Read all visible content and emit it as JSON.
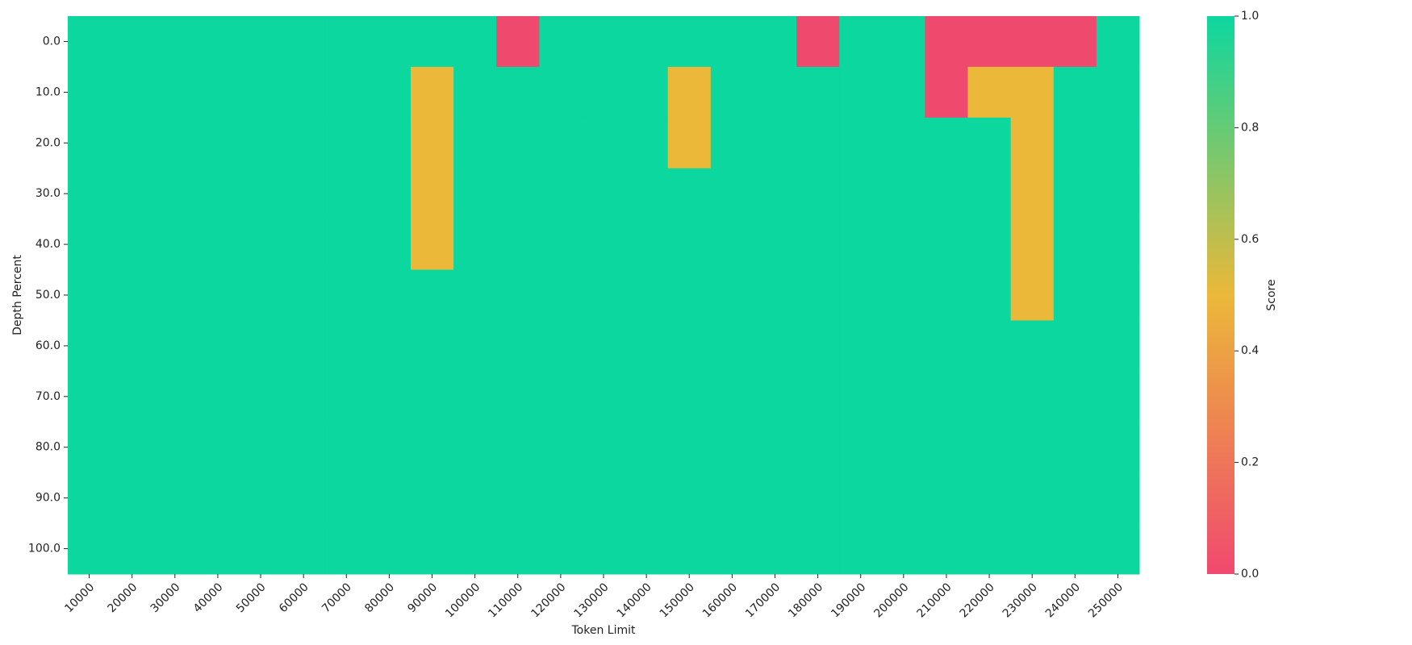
{
  "chart_data": {
    "type": "heatmap",
    "x_label": "Token Limit",
    "y_label": "Depth Percent",
    "colorbar_label": "Score",
    "x_categories": [
      "10000",
      "20000",
      "30000",
      "40000",
      "50000",
      "60000",
      "70000",
      "80000",
      "90000",
      "100000",
      "110000",
      "120000",
      "130000",
      "140000",
      "150000",
      "160000",
      "170000",
      "180000",
      "190000",
      "200000",
      "210000",
      "220000",
      "230000",
      "240000",
      "250000"
    ],
    "y_categories": [
      "0.0",
      "10.0",
      "20.0",
      "30.0",
      "40.0",
      "50.0",
      "60.0",
      "70.0",
      "80.0",
      "90.0",
      "100.0"
    ],
    "values": [
      [
        1,
        1,
        1,
        1,
        1,
        1,
        1,
        1,
        1,
        1,
        0,
        1,
        1,
        1,
        1,
        1,
        1,
        0,
        1,
        1,
        0,
        0,
        0,
        0,
        1
      ],
      [
        1,
        1,
        1,
        1,
        1,
        1,
        1,
        1,
        0.5,
        1,
        1,
        1,
        1,
        1,
        0.5,
        1,
        1,
        1,
        1,
        1,
        0,
        0.5,
        0.5,
        1,
        1
      ],
      [
        1,
        1,
        1,
        1,
        1,
        1,
        1,
        1,
        0.5,
        1,
        1,
        1,
        1,
        1,
        0.5,
        1,
        1,
        1,
        1,
        1,
        1,
        1,
        0.5,
        1,
        1
      ],
      [
        1,
        1,
        1,
        1,
        1,
        1,
        1,
        1,
        0.5,
        1,
        1,
        1,
        1,
        1,
        1,
        1,
        1,
        1,
        1,
        1,
        1,
        1,
        0.5,
        1,
        1
      ],
      [
        1,
        1,
        1,
        1,
        1,
        1,
        1,
        1,
        0.5,
        1,
        1,
        1,
        1,
        1,
        1,
        1,
        1,
        1,
        1,
        1,
        1,
        1,
        0.5,
        1,
        1
      ],
      [
        1,
        1,
        1,
        1,
        1,
        1,
        1,
        1,
        1,
        1,
        1,
        1,
        1,
        1,
        1,
        1,
        1,
        1,
        1,
        1,
        1,
        1,
        0.5,
        1,
        1
      ],
      [
        1,
        1,
        1,
        1,
        1,
        1,
        1,
        1,
        1,
        1,
        1,
        1,
        1,
        1,
        1,
        1,
        1,
        1,
        1,
        1,
        1,
        1,
        1,
        1,
        1
      ],
      [
        1,
        1,
        1,
        1,
        1,
        1,
        1,
        1,
        1,
        1,
        1,
        1,
        1,
        1,
        1,
        1,
        1,
        1,
        1,
        1,
        1,
        1,
        1,
        1,
        1
      ],
      [
        1,
        1,
        1,
        1,
        1,
        1,
        1,
        1,
        1,
        1,
        1,
        1,
        1,
        1,
        1,
        1,
        1,
        1,
        1,
        1,
        1,
        1,
        1,
        1,
        1
      ],
      [
        1,
        1,
        1,
        1,
        1,
        1,
        1,
        1,
        1,
        1,
        1,
        1,
        1,
        1,
        1,
        1,
        1,
        1,
        1,
        1,
        1,
        1,
        1,
        1,
        1
      ],
      [
        1,
        1,
        1,
        1,
        1,
        1,
        1,
        1,
        1,
        1,
        1,
        1,
        1,
        1,
        1,
        1,
        1,
        1,
        1,
        1,
        1,
        1,
        1,
        1,
        1
      ]
    ],
    "clim": [
      0,
      1
    ],
    "colorscale": [
      [
        0,
        "#F0496E"
      ],
      [
        0.5,
        "#EBB839"
      ],
      [
        1,
        "#0CD79F"
      ]
    ],
    "cticks": [
      {
        "value": 0,
        "label": "0.0"
      },
      {
        "value": 0.2,
        "label": "0.2"
      },
      {
        "value": 0.4,
        "label": "0.4"
      },
      {
        "value": 0.6,
        "label": "0.6"
      },
      {
        "value": 0.8,
        "label": "0.8"
      },
      {
        "value": 1,
        "label": "1.0"
      }
    ]
  }
}
